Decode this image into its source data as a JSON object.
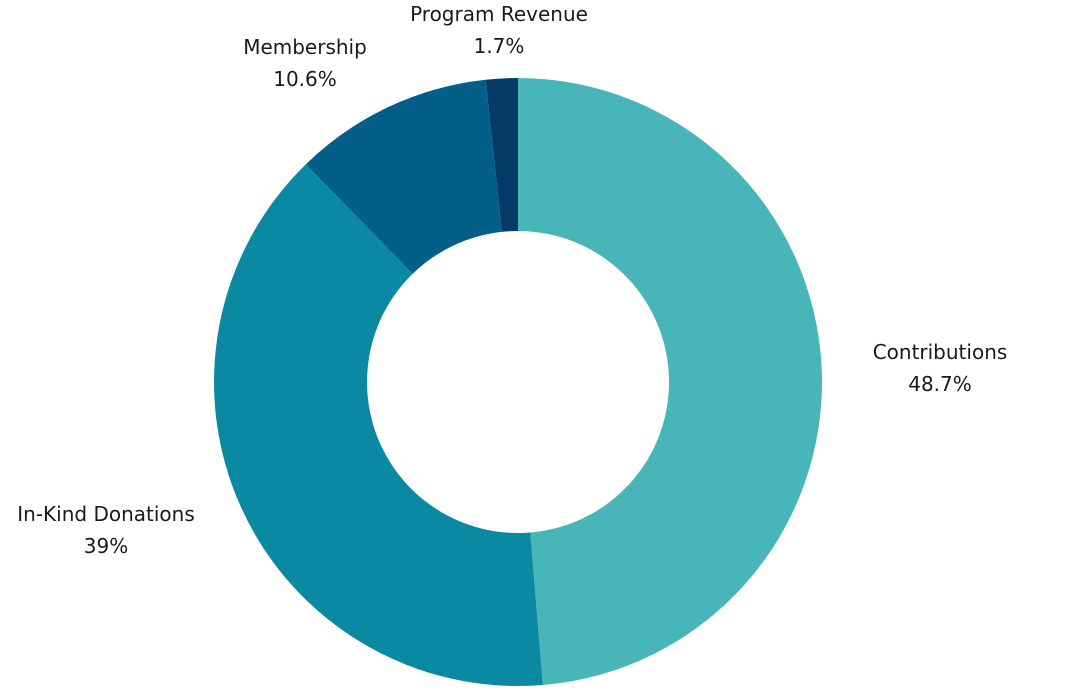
{
  "chart_data": {
    "type": "pie",
    "donut": true,
    "start_angle_deg": 0,
    "direction": "clockwise",
    "slices": [
      {
        "label": "Contributions",
        "value": 48.7,
        "value_label": "48.7%",
        "color": "#48b5b8"
      },
      {
        "label": "In-Kind Donations",
        "value": 39,
        "value_label": "39%",
        "color": "#0b89a3"
      },
      {
        "label": "Membership",
        "value": 10.6,
        "value_label": "10.6%",
        "color": "#035f88"
      },
      {
        "label": "Program Revenue",
        "value": 1.7,
        "value_label": "1.7%",
        "color": "#033b66"
      }
    ]
  }
}
